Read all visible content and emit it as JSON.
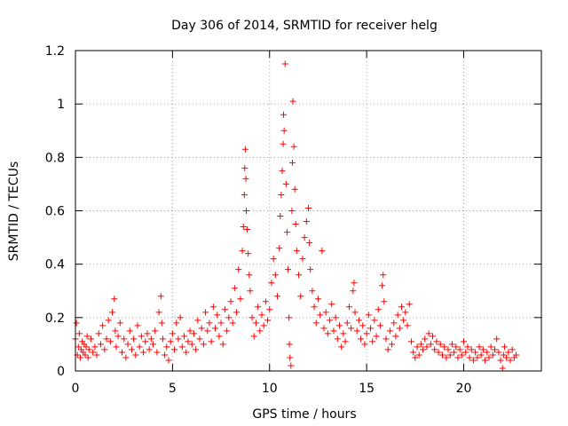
{
  "chart_data": {
    "type": "scatter",
    "title": "Day 306 of 2014, SRMTID for receiver helg",
    "xlabel": "GPS time / hours",
    "ylabel": "SRMTID / TECUs",
    "xlim": [
      0,
      24
    ],
    "ylim": [
      0,
      1.2
    ],
    "x_ticks": [
      0,
      5,
      10,
      15,
      20
    ],
    "x_tick_labels": [
      "0",
      "5",
      "10",
      "15",
      "20"
    ],
    "y_ticks": [
      0,
      0.2,
      0.4,
      0.6,
      0.8,
      1.0,
      1.2
    ],
    "y_tick_labels": [
      "0",
      "0.2",
      "0.4",
      "0.6",
      "0.8",
      "1",
      "1.2"
    ],
    "grid": true,
    "marker": "plus",
    "series": [
      {
        "name": "SRMTID",
        "color": "#ff0000",
        "points": [
          [
            0.0,
            0.12
          ],
          [
            0.05,
            0.18
          ],
          [
            0.1,
            0.06
          ],
          [
            0.15,
            0.09
          ],
          [
            0.2,
            0.14
          ],
          [
            0.25,
            0.05
          ],
          [
            0.3,
            0.08
          ],
          [
            0.35,
            0.11
          ],
          [
            0.4,
            0.07
          ],
          [
            0.45,
            0.1
          ],
          [
            0.5,
            0.06
          ],
          [
            0.55,
            0.09
          ],
          [
            0.6,
            0.13
          ],
          [
            0.65,
            0.05
          ],
          [
            0.7,
            0.08
          ],
          [
            0.8,
            0.12
          ],
          [
            0.9,
            0.07
          ],
          [
            1.0,
            0.09
          ],
          [
            1.1,
            0.06
          ],
          [
            1.2,
            0.14
          ],
          [
            1.3,
            0.1
          ],
          [
            1.4,
            0.17
          ],
          [
            1.5,
            0.08
          ],
          [
            1.6,
            0.12
          ],
          [
            1.7,
            0.19
          ],
          [
            1.8,
            0.11
          ],
          [
            1.9,
            0.22
          ],
          [
            2.0,
            0.27
          ],
          [
            2.05,
            0.15
          ],
          [
            2.1,
            0.09
          ],
          [
            2.2,
            0.13
          ],
          [
            2.3,
            0.18
          ],
          [
            2.4,
            0.07
          ],
          [
            2.5,
            0.12
          ],
          [
            2.6,
            0.05
          ],
          [
            2.7,
            0.1
          ],
          [
            2.8,
            0.15
          ],
          [
            2.9,
            0.08
          ],
          [
            3.0,
            0.12
          ],
          [
            3.1,
            0.06
          ],
          [
            3.2,
            0.17
          ],
          [
            3.3,
            0.09
          ],
          [
            3.4,
            0.13
          ],
          [
            3.5,
            0.07
          ],
          [
            3.6,
            0.11
          ],
          [
            3.7,
            0.14
          ],
          [
            3.8,
            0.08
          ],
          [
            3.9,
            0.12
          ],
          [
            4.0,
            0.1
          ],
          [
            4.1,
            0.15
          ],
          [
            4.2,
            0.07
          ],
          [
            4.3,
            0.22
          ],
          [
            4.4,
            0.28
          ],
          [
            4.45,
            0.18
          ],
          [
            4.5,
            0.12
          ],
          [
            4.6,
            0.06
          ],
          [
            4.7,
            0.09
          ],
          [
            4.8,
            0.04
          ],
          [
            4.9,
            0.11
          ],
          [
            5.0,
            0.14
          ],
          [
            5.1,
            0.08
          ],
          [
            5.2,
            0.18
          ],
          [
            5.3,
            0.12
          ],
          [
            5.4,
            0.2
          ],
          [
            5.5,
            0.09
          ],
          [
            5.6,
            0.13
          ],
          [
            5.7,
            0.07
          ],
          [
            5.8,
            0.11
          ],
          [
            5.9,
            0.15
          ],
          [
            6.0,
            0.1
          ],
          [
            6.1,
            0.14
          ],
          [
            6.2,
            0.08
          ],
          [
            6.3,
            0.19
          ],
          [
            6.4,
            0.12
          ],
          [
            6.5,
            0.16
          ],
          [
            6.6,
            0.1
          ],
          [
            6.7,
            0.22
          ],
          [
            6.8,
            0.15
          ],
          [
            6.9,
            0.18
          ],
          [
            7.0,
            0.11
          ],
          [
            7.1,
            0.24
          ],
          [
            7.2,
            0.16
          ],
          [
            7.3,
            0.21
          ],
          [
            7.4,
            0.13
          ],
          [
            7.5,
            0.18
          ],
          [
            7.6,
            0.1
          ],
          [
            7.7,
            0.23
          ],
          [
            7.8,
            0.15
          ],
          [
            7.9,
            0.2
          ],
          [
            8.0,
            0.26
          ],
          [
            8.1,
            0.18
          ],
          [
            8.2,
            0.31
          ],
          [
            8.3,
            0.22
          ],
          [
            8.4,
            0.38
          ],
          [
            8.5,
            0.27
          ],
          [
            8.6,
            0.45
          ],
          [
            8.65,
            0.54
          ],
          [
            8.7,
            0.66
          ],
          [
            8.72,
            0.76
          ],
          [
            8.75,
            0.83
          ],
          [
            8.78,
            0.72
          ],
          [
            8.8,
            0.6
          ],
          [
            8.85,
            0.53
          ],
          [
            8.9,
            0.44
          ],
          [
            8.95,
            0.36
          ],
          [
            9.0,
            0.3
          ],
          [
            9.1,
            0.2
          ],
          [
            9.2,
            0.13
          ],
          [
            9.3,
            0.18
          ],
          [
            9.4,
            0.24
          ],
          [
            9.5,
            0.15
          ],
          [
            9.6,
            0.21
          ],
          [
            9.7,
            0.17
          ],
          [
            9.8,
            0.26
          ],
          [
            9.9,
            0.19
          ],
          [
            10.0,
            0.23
          ],
          [
            10.1,
            0.33
          ],
          [
            10.2,
            0.42
          ],
          [
            10.3,
            0.36
          ],
          [
            10.4,
            0.28
          ],
          [
            10.5,
            0.46
          ],
          [
            10.55,
            0.58
          ],
          [
            10.6,
            0.66
          ],
          [
            10.65,
            0.75
          ],
          [
            10.7,
            0.85
          ],
          [
            10.72,
            0.96
          ],
          [
            10.75,
            0.9
          ],
          [
            10.8,
            1.15
          ],
          [
            10.85,
            0.7
          ],
          [
            10.9,
            0.52
          ],
          [
            10.95,
            0.38
          ],
          [
            11.0,
            0.2
          ],
          [
            11.02,
            0.1
          ],
          [
            11.05,
            0.05
          ],
          [
            11.1,
            0.02
          ],
          [
            11.15,
            0.6
          ],
          [
            11.18,
            0.78
          ],
          [
            11.2,
            1.01
          ],
          [
            11.25,
            0.84
          ],
          [
            11.3,
            0.68
          ],
          [
            11.35,
            0.55
          ],
          [
            11.4,
            0.45
          ],
          [
            11.5,
            0.36
          ],
          [
            11.6,
            0.28
          ],
          [
            11.7,
            0.42
          ],
          [
            11.8,
            0.5
          ],
          [
            11.9,
            0.56
          ],
          [
            12.0,
            0.61
          ],
          [
            12.05,
            0.48
          ],
          [
            12.1,
            0.38
          ],
          [
            12.2,
            0.3
          ],
          [
            12.3,
            0.24
          ],
          [
            12.4,
            0.18
          ],
          [
            12.5,
            0.27
          ],
          [
            12.6,
            0.21
          ],
          [
            12.7,
            0.45
          ],
          [
            12.8,
            0.16
          ],
          [
            12.9,
            0.22
          ],
          [
            13.0,
            0.14
          ],
          [
            13.1,
            0.19
          ],
          [
            13.2,
            0.25
          ],
          [
            13.3,
            0.15
          ],
          [
            13.4,
            0.2
          ],
          [
            13.5,
            0.12
          ],
          [
            13.6,
            0.17
          ],
          [
            13.7,
            0.09
          ],
          [
            13.8,
            0.14
          ],
          [
            13.9,
            0.11
          ],
          [
            14.0,
            0.18
          ],
          [
            14.1,
            0.24
          ],
          [
            14.2,
            0.16
          ],
          [
            14.3,
            0.3
          ],
          [
            14.35,
            0.33
          ],
          [
            14.4,
            0.22
          ],
          [
            14.5,
            0.15
          ],
          [
            14.6,
            0.19
          ],
          [
            14.7,
            0.12
          ],
          [
            14.8,
            0.17
          ],
          [
            14.9,
            0.1
          ],
          [
            15.0,
            0.14
          ],
          [
            15.1,
            0.21
          ],
          [
            15.2,
            0.16
          ],
          [
            15.3,
            0.11
          ],
          [
            15.4,
            0.19
          ],
          [
            15.5,
            0.13
          ],
          [
            15.6,
            0.23
          ],
          [
            15.7,
            0.17
          ],
          [
            15.8,
            0.32
          ],
          [
            15.85,
            0.36
          ],
          [
            15.9,
            0.26
          ],
          [
            16.0,
            0.12
          ],
          [
            16.1,
            0.08
          ],
          [
            16.2,
            0.15
          ],
          [
            16.3,
            0.1
          ],
          [
            16.4,
            0.18
          ],
          [
            16.5,
            0.13
          ],
          [
            16.6,
            0.21
          ],
          [
            16.7,
            0.16
          ],
          [
            16.8,
            0.24
          ],
          [
            16.9,
            0.19
          ],
          [
            17.0,
            0.22
          ],
          [
            17.1,
            0.17
          ],
          [
            17.2,
            0.25
          ],
          [
            17.3,
            0.11
          ],
          [
            17.4,
            0.07
          ],
          [
            17.5,
            0.05
          ],
          [
            17.6,
            0.09
          ],
          [
            17.7,
            0.06
          ],
          [
            17.8,
            0.1
          ],
          [
            17.9,
            0.08
          ],
          [
            18.0,
            0.12
          ],
          [
            18.1,
            0.09
          ],
          [
            18.2,
            0.14
          ],
          [
            18.3,
            0.1
          ],
          [
            18.4,
            0.13
          ],
          [
            18.5,
            0.08
          ],
          [
            18.6,
            0.11
          ],
          [
            18.7,
            0.07
          ],
          [
            18.8,
            0.1
          ],
          [
            18.9,
            0.06
          ],
          [
            19.0,
            0.09
          ],
          [
            19.1,
            0.05
          ],
          [
            19.2,
            0.08
          ],
          [
            19.3,
            0.06
          ],
          [
            19.4,
            0.1
          ],
          [
            19.5,
            0.07
          ],
          [
            19.6,
            0.09
          ],
          [
            19.7,
            0.05
          ],
          [
            19.8,
            0.08
          ],
          [
            19.9,
            0.06
          ],
          [
            20.0,
            0.11
          ],
          [
            20.1,
            0.07
          ],
          [
            20.2,
            0.09
          ],
          [
            20.3,
            0.05
          ],
          [
            20.4,
            0.08
          ],
          [
            20.5,
            0.04
          ],
          [
            20.6,
            0.07
          ],
          [
            20.7,
            0.05
          ],
          [
            20.8,
            0.09
          ],
          [
            20.9,
            0.06
          ],
          [
            21.0,
            0.08
          ],
          [
            21.1,
            0.04
          ],
          [
            21.2,
            0.07
          ],
          [
            21.3,
            0.05
          ],
          [
            21.4,
            0.09
          ],
          [
            21.5,
            0.06
          ],
          [
            21.6,
            0.08
          ],
          [
            21.7,
            0.12
          ],
          [
            21.8,
            0.07
          ],
          [
            21.9,
            0.04
          ],
          [
            22.0,
            0.01
          ],
          [
            22.05,
            0.06
          ],
          [
            22.1,
            0.09
          ],
          [
            22.2,
            0.05
          ],
          [
            22.3,
            0.07
          ],
          [
            22.4,
            0.04
          ],
          [
            22.5,
            0.08
          ],
          [
            22.6,
            0.05
          ],
          [
            22.7,
            0.06
          ]
        ]
      }
    ]
  }
}
